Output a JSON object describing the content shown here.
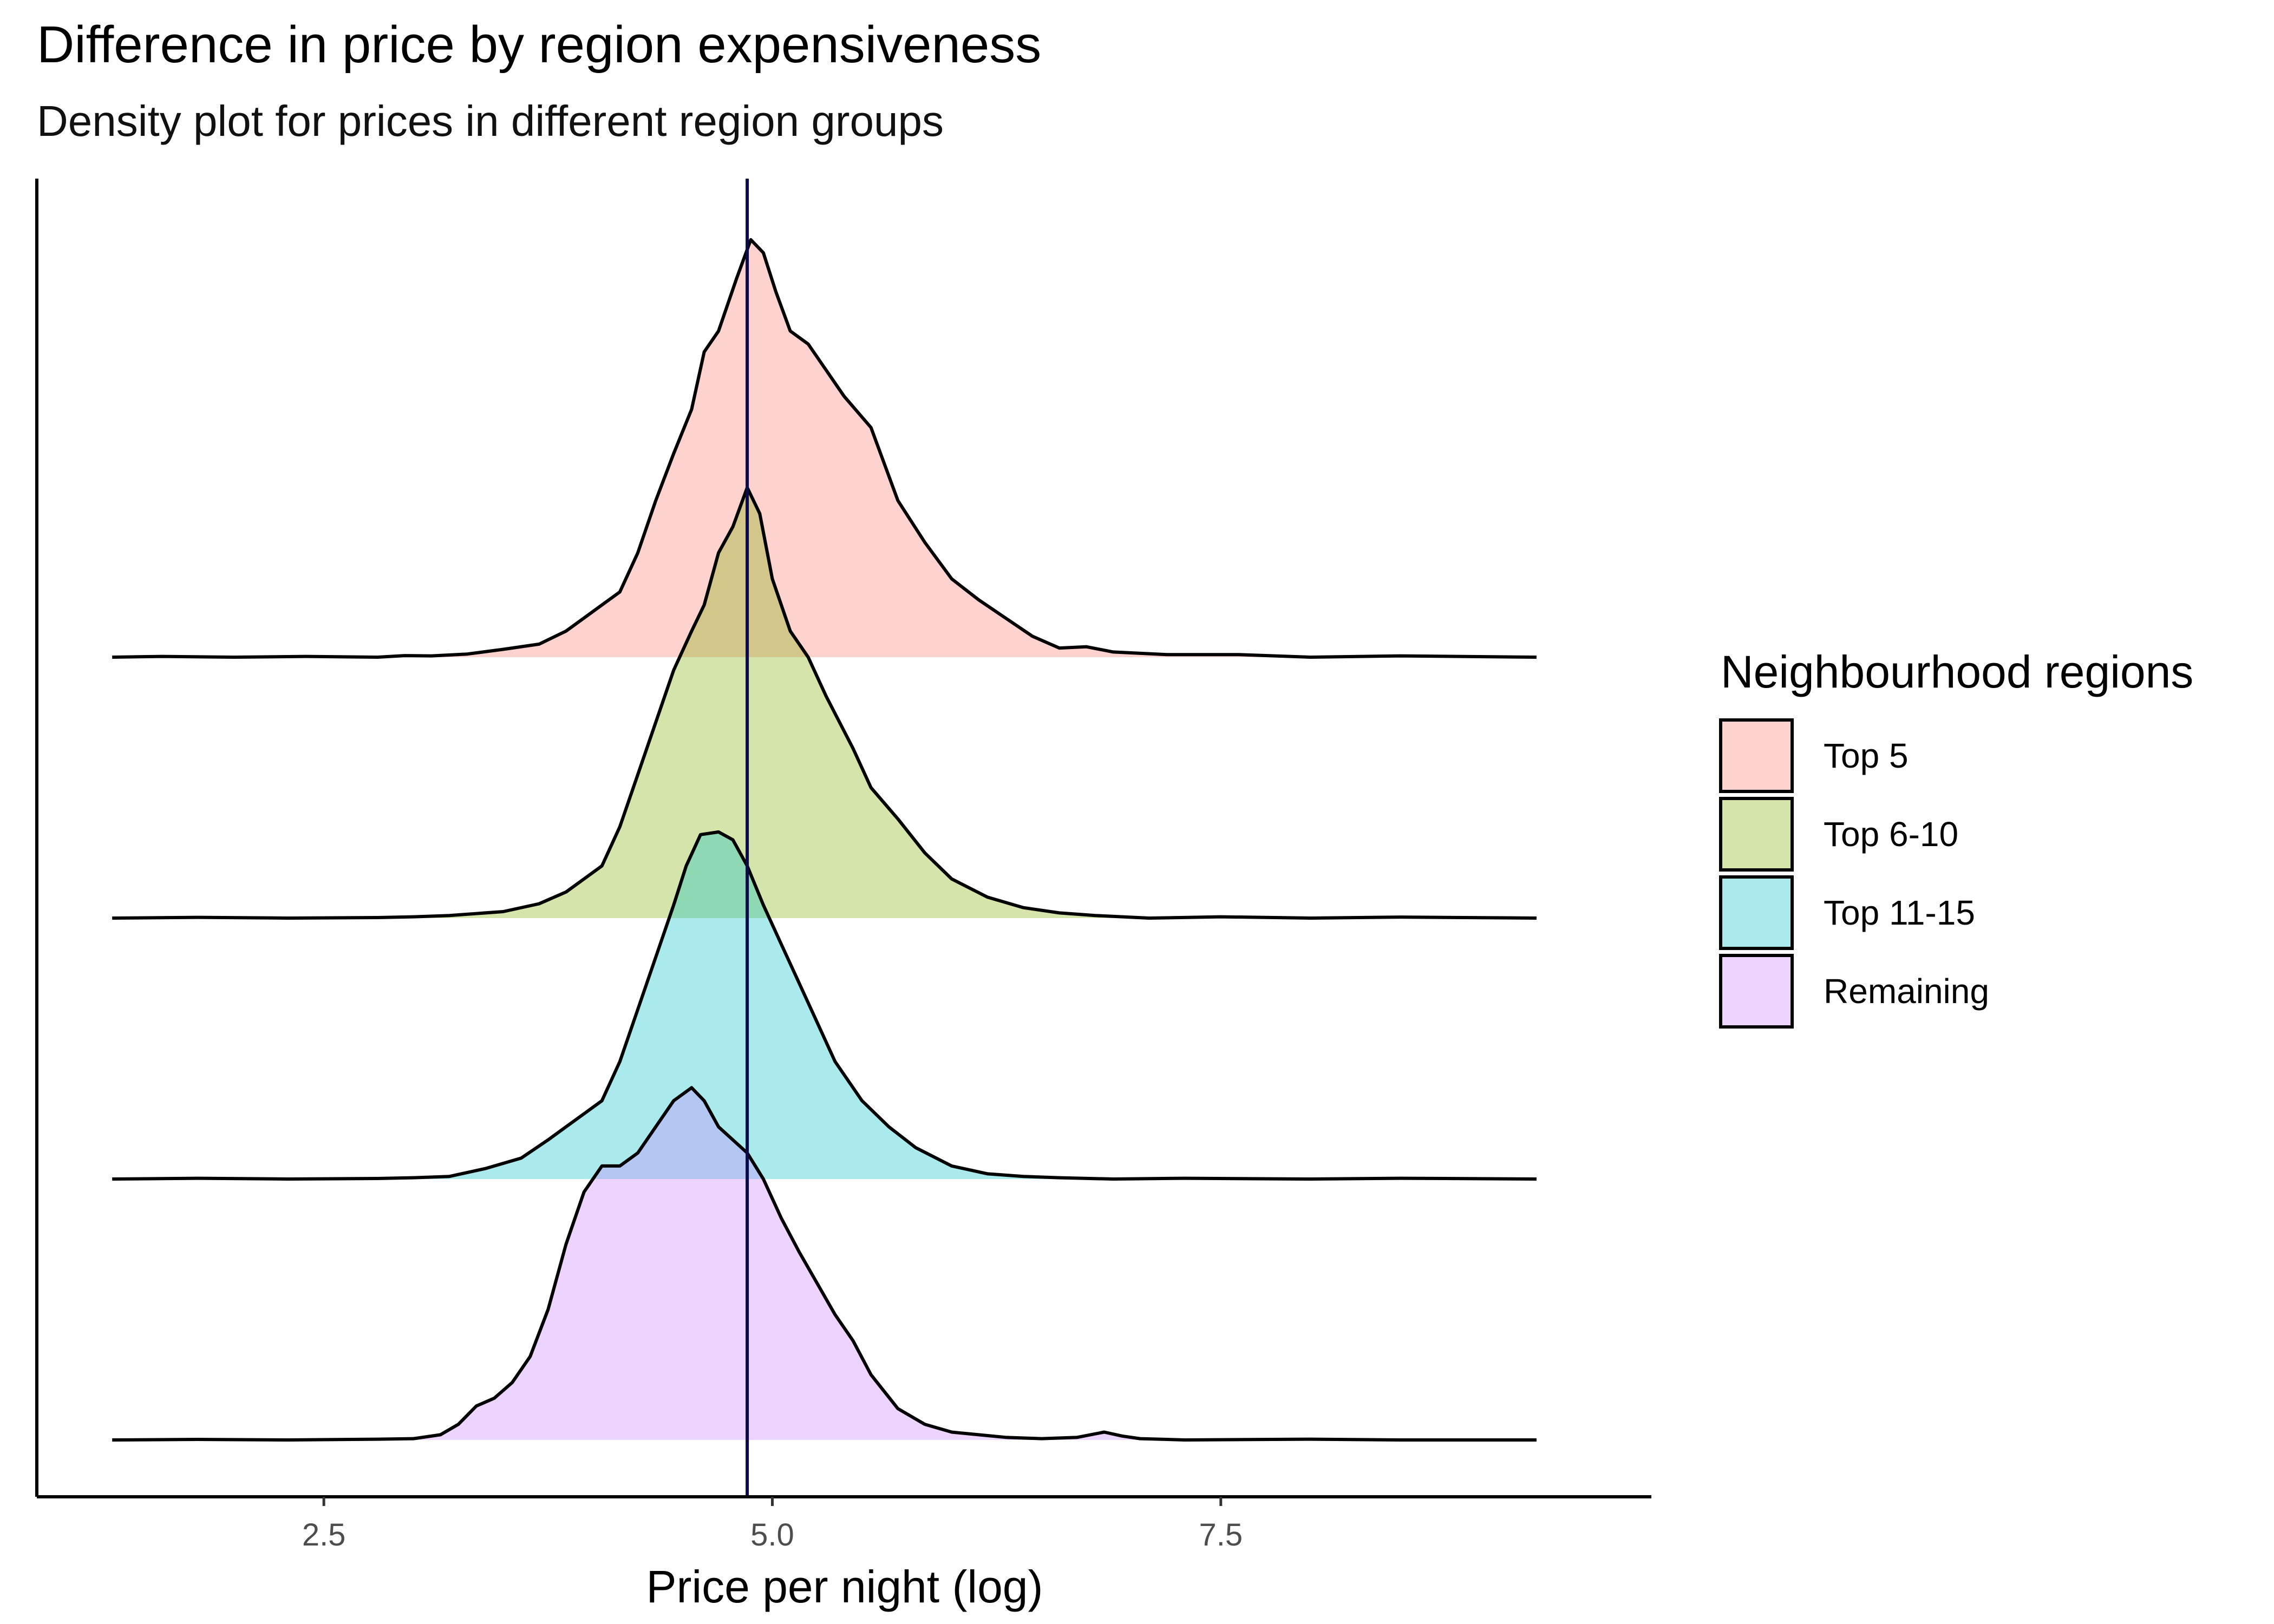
{
  "title": "Difference in price by region expensiveness",
  "subtitle": "Density plot for prices in different region groups",
  "chart_data": {
    "type": "area",
    "subtype": "ridgeline-density",
    "title": "Difference in price by region expensiveness",
    "subtitle": "Density plot for prices in different region groups",
    "xlabel": "Price per night (log)",
    "ylabel": "",
    "xlim": [
      0.9,
      9.9
    ],
    "xticks": [
      2.5,
      5.0,
      7.5
    ],
    "xtick_labels": [
      "2.5",
      "5.0",
      "7.5"
    ],
    "x_range_of_curves": [
      1.32,
      9.26
    ],
    "reference_line": {
      "x": 4.86,
      "color": "#0b0b4a"
    },
    "grid": false,
    "legend": {
      "title": "Neighbourhood regions",
      "position": "right"
    },
    "row_height_relative": 1.0,
    "series": [
      {
        "name": "Top 5",
        "fill": "#f8766d",
        "baseline": 3,
        "x": [
          1.32,
          1.6,
          2.0,
          2.4,
          2.8,
          2.95,
          3.1,
          3.3,
          3.5,
          3.7,
          3.85,
          3.95,
          4.05,
          4.15,
          4.25,
          4.35,
          4.45,
          4.55,
          4.62,
          4.7,
          4.8,
          4.88,
          4.95,
          5.02,
          5.1,
          5.2,
          5.3,
          5.4,
          5.55,
          5.7,
          5.85,
          6.0,
          6.15,
          6.3,
          6.45,
          6.6,
          6.75,
          6.9,
          7.2,
          7.6,
          8.0,
          8.5,
          9.26
        ],
        "density": [
          0,
          0.003,
          0,
          0.003,
          0,
          0.006,
          0.005,
          0.012,
          0.03,
          0.05,
          0.1,
          0.15,
          0.2,
          0.25,
          0.4,
          0.6,
          0.78,
          0.95,
          1.17,
          1.25,
          1.45,
          1.6,
          1.55,
          1.4,
          1.25,
          1.2,
          1.1,
          1.0,
          0.88,
          0.6,
          0.44,
          0.3,
          0.22,
          0.15,
          0.08,
          0.035,
          0.04,
          0.02,
          0.01,
          0.01,
          0,
          0.005,
          0
        ]
      },
      {
        "name": "Top 6-10",
        "fill": "#7cae00",
        "baseline": 2,
        "x": [
          1.32,
          1.8,
          2.3,
          2.8,
          3.0,
          3.2,
          3.5,
          3.7,
          3.85,
          3.95,
          4.05,
          4.15,
          4.25,
          4.35,
          4.45,
          4.55,
          4.62,
          4.7,
          4.78,
          4.86,
          4.93,
          5.0,
          5.1,
          5.2,
          5.3,
          5.45,
          5.55,
          5.7,
          5.85,
          6.0,
          6.2,
          6.4,
          6.6,
          6.8,
          7.1,
          7.5,
          8.0,
          8.5,
          9.26
        ],
        "density": [
          0,
          0.003,
          0,
          0.002,
          0.005,
          0.01,
          0.025,
          0.055,
          0.1,
          0.15,
          0.2,
          0.35,
          0.55,
          0.75,
          0.95,
          1.1,
          1.2,
          1.4,
          1.5,
          1.65,
          1.55,
          1.3,
          1.1,
          1.0,
          0.85,
          0.65,
          0.5,
          0.38,
          0.25,
          0.15,
          0.08,
          0.04,
          0.02,
          0.01,
          0,
          0.005,
          0,
          0.004,
          0
        ]
      },
      {
        "name": "Top 11-15",
        "fill": "#00bfc4",
        "baseline": 1,
        "x": [
          1.32,
          1.8,
          2.3,
          2.8,
          3.0,
          3.2,
          3.4,
          3.6,
          3.75,
          3.85,
          3.95,
          4.05,
          4.15,
          4.25,
          4.35,
          4.45,
          4.52,
          4.6,
          4.7,
          4.78,
          4.86,
          4.95,
          5.05,
          5.15,
          5.25,
          5.35,
          5.5,
          5.65,
          5.8,
          6.0,
          6.2,
          6.4,
          6.6,
          6.9,
          7.3,
          8.0,
          8.5,
          9.26
        ],
        "density": [
          0,
          0.003,
          0,
          0.002,
          0.005,
          0.01,
          0.04,
          0.08,
          0.15,
          0.2,
          0.25,
          0.3,
          0.45,
          0.65,
          0.85,
          1.05,
          1.2,
          1.32,
          1.33,
          1.3,
          1.2,
          1.05,
          0.9,
          0.75,
          0.6,
          0.45,
          0.3,
          0.2,
          0.12,
          0.05,
          0.02,
          0.01,
          0.005,
          0,
          0.003,
          0,
          0.003,
          0
        ]
      },
      {
        "name": "Remaining",
        "fill": "#c77cff",
        "baseline": 0,
        "x": [
          1.32,
          1.8,
          2.3,
          2.8,
          3.0,
          3.15,
          3.25,
          3.35,
          3.45,
          3.55,
          3.65,
          3.75,
          3.85,
          3.95,
          4.05,
          4.15,
          4.25,
          4.35,
          4.45,
          4.55,
          4.62,
          4.7,
          4.78,
          4.86,
          4.95,
          5.05,
          5.15,
          5.25,
          5.35,
          5.45,
          5.55,
          5.7,
          5.85,
          6.0,
          6.15,
          6.3,
          6.5,
          6.7,
          6.85,
          6.95,
          7.05,
          7.3,
          8.0,
          8.5,
          9.26
        ],
        "density": [
          0,
          0.002,
          0,
          0.003,
          0.005,
          0.02,
          0.06,
          0.13,
          0.16,
          0.22,
          0.32,
          0.5,
          0.75,
          0.95,
          1.05,
          1.05,
          1.1,
          1.2,
          1.3,
          1.35,
          1.3,
          1.2,
          1.15,
          1.1,
          1.0,
          0.85,
          0.72,
          0.6,
          0.48,
          0.38,
          0.25,
          0.12,
          0.06,
          0.03,
          0.02,
          0.01,
          0.005,
          0.01,
          0.03,
          0.015,
          0.005,
          0,
          0.003,
          0,
          0
        ]
      }
    ]
  }
}
